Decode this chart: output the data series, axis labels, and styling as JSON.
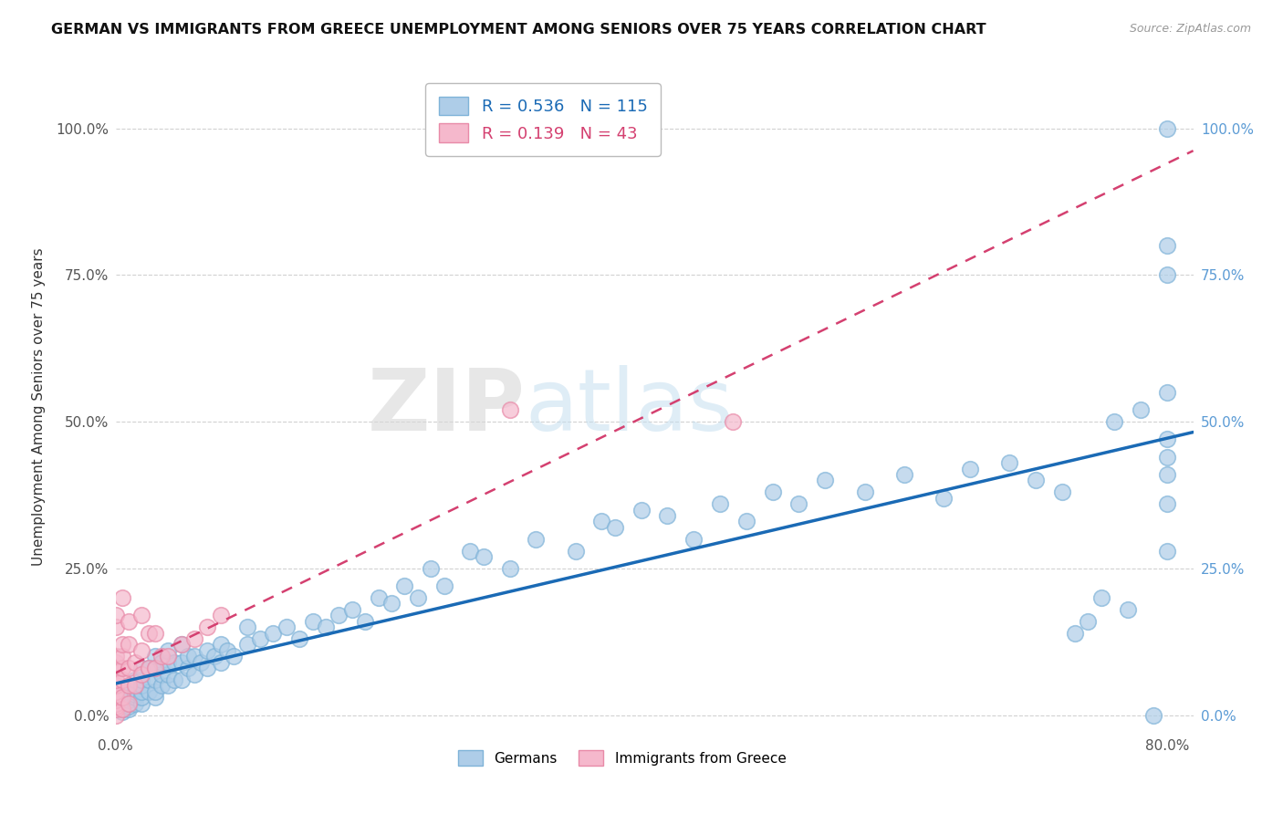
{
  "title": "GERMAN VS IMMIGRANTS FROM GREECE UNEMPLOYMENT AMONG SENIORS OVER 75 YEARS CORRELATION CHART",
  "source": "Source: ZipAtlas.com",
  "ylabel": "Unemployment Among Seniors over 75 years",
  "xlim": [
    0.0,
    0.82
  ],
  "ylim": [
    -0.03,
    1.08
  ],
  "ytick_labels": [
    "0.0%",
    "25.0%",
    "50.0%",
    "75.0%",
    "100.0%"
  ],
  "ytick_vals": [
    0.0,
    0.25,
    0.5,
    0.75,
    1.0
  ],
  "xtick_labels": [
    "0.0%",
    "",
    "",
    "",
    "",
    "",
    "",
    "",
    "80.0%"
  ],
  "xtick_vals": [
    0.0,
    0.1,
    0.2,
    0.3,
    0.4,
    0.5,
    0.6,
    0.7,
    0.8
  ],
  "german_R": 0.536,
  "german_N": 115,
  "greek_R": 0.139,
  "greek_N": 43,
  "german_color": "#aecde8",
  "greek_color": "#f5b8cc",
  "german_edge_color": "#7fb3d8",
  "greek_edge_color": "#e88aa8",
  "german_line_color": "#1a6ab5",
  "greek_line_color": "#d44070",
  "legend_label_german": "Germans",
  "legend_label_greek": "Immigrants from Greece",
  "german_scatter_x": [
    0.005,
    0.005,
    0.005,
    0.005,
    0.005,
    0.005,
    0.005,
    0.005,
    0.005,
    0.005,
    0.008,
    0.01,
    0.01,
    0.01,
    0.01,
    0.01,
    0.01,
    0.015,
    0.015,
    0.015,
    0.015,
    0.015,
    0.02,
    0.02,
    0.02,
    0.02,
    0.02,
    0.02,
    0.025,
    0.025,
    0.025,
    0.03,
    0.03,
    0.03,
    0.03,
    0.03,
    0.035,
    0.035,
    0.035,
    0.04,
    0.04,
    0.04,
    0.04,
    0.045,
    0.045,
    0.05,
    0.05,
    0.05,
    0.055,
    0.055,
    0.06,
    0.06,
    0.065,
    0.07,
    0.07,
    0.075,
    0.08,
    0.08,
    0.085,
    0.09,
    0.1,
    0.1,
    0.11,
    0.12,
    0.13,
    0.14,
    0.15,
    0.16,
    0.17,
    0.18,
    0.19,
    0.2,
    0.21,
    0.22,
    0.23,
    0.24,
    0.25,
    0.27,
    0.28,
    0.3,
    0.32,
    0.35,
    0.37,
    0.38,
    0.4,
    0.42,
    0.44,
    0.46,
    0.48,
    0.5,
    0.52,
    0.54,
    0.57,
    0.6,
    0.63,
    0.65,
    0.68,
    0.7,
    0.72,
    0.73,
    0.74,
    0.75,
    0.76,
    0.77,
    0.78,
    0.79,
    0.8,
    0.8,
    0.8,
    0.8,
    0.8,
    0.8,
    0.8,
    0.8,
    0.8
  ],
  "german_scatter_y": [
    0.005,
    0.01,
    0.01,
    0.015,
    0.02,
    0.02,
    0.025,
    0.03,
    0.03,
    0.04,
    0.02,
    0.01,
    0.015,
    0.02,
    0.025,
    0.03,
    0.04,
    0.02,
    0.03,
    0.035,
    0.04,
    0.06,
    0.02,
    0.03,
    0.04,
    0.05,
    0.06,
    0.08,
    0.04,
    0.06,
    0.08,
    0.03,
    0.04,
    0.06,
    0.08,
    0.1,
    0.05,
    0.07,
    0.09,
    0.05,
    0.07,
    0.09,
    0.11,
    0.06,
    0.09,
    0.06,
    0.09,
    0.12,
    0.08,
    0.1,
    0.07,
    0.1,
    0.09,
    0.08,
    0.11,
    0.1,
    0.09,
    0.12,
    0.11,
    0.1,
    0.12,
    0.15,
    0.13,
    0.14,
    0.15,
    0.13,
    0.16,
    0.15,
    0.17,
    0.18,
    0.16,
    0.2,
    0.19,
    0.22,
    0.2,
    0.25,
    0.22,
    0.28,
    0.27,
    0.25,
    0.3,
    0.28,
    0.33,
    0.32,
    0.35,
    0.34,
    0.3,
    0.36,
    0.33,
    0.38,
    0.36,
    0.4,
    0.38,
    0.41,
    0.37,
    0.42,
    0.43,
    0.4,
    0.38,
    0.14,
    0.16,
    0.2,
    0.5,
    0.18,
    0.52,
    0.0,
    0.8,
    1.0,
    0.55,
    0.44,
    0.47,
    0.36,
    0.28,
    0.41,
    0.75
  ],
  "greek_scatter_x": [
    0.0,
    0.0,
    0.0,
    0.0,
    0.0,
    0.0,
    0.0,
    0.0,
    0.0,
    0.0,
    0.0,
    0.0,
    0.0,
    0.0,
    0.005,
    0.005,
    0.005,
    0.005,
    0.005,
    0.005,
    0.005,
    0.01,
    0.01,
    0.01,
    0.01,
    0.01,
    0.015,
    0.015,
    0.02,
    0.02,
    0.02,
    0.025,
    0.025,
    0.03,
    0.03,
    0.035,
    0.04,
    0.05,
    0.06,
    0.07,
    0.08,
    0.3,
    0.47
  ],
  "greek_scatter_y": [
    0.0,
    0.01,
    0.015,
    0.02,
    0.025,
    0.03,
    0.04,
    0.05,
    0.06,
    0.08,
    0.09,
    0.1,
    0.15,
    0.17,
    0.01,
    0.03,
    0.06,
    0.08,
    0.1,
    0.12,
    0.2,
    0.02,
    0.05,
    0.08,
    0.12,
    0.16,
    0.05,
    0.09,
    0.07,
    0.11,
    0.17,
    0.08,
    0.14,
    0.08,
    0.14,
    0.1,
    0.1,
    0.12,
    0.13,
    0.15,
    0.17,
    0.52,
    0.5
  ]
}
